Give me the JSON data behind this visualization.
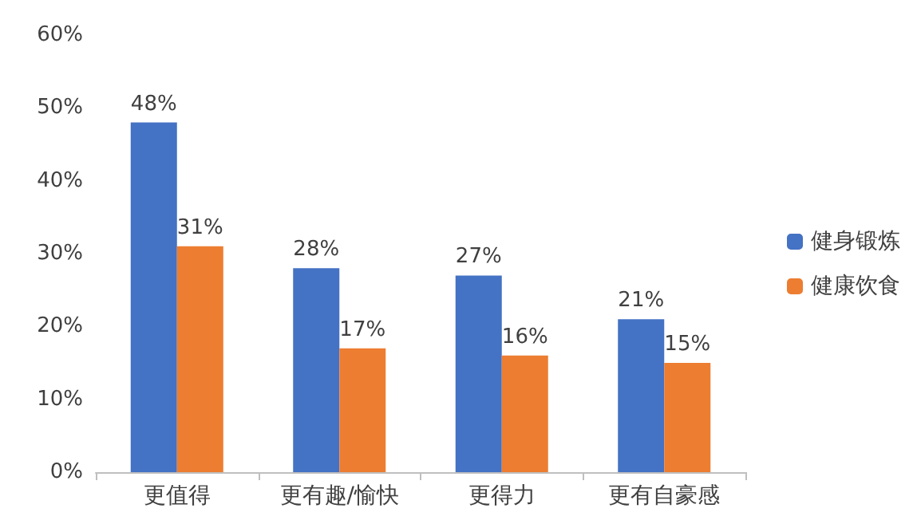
{
  "chart_data": {
    "type": "bar",
    "categories": [
      "更值得",
      "更有趣/愉快",
      "更得力",
      "更有自豪感"
    ],
    "series": [
      {
        "name": "健身锻炼",
        "color": "#4472c4",
        "values": [
          48,
          28,
          27,
          21
        ],
        "value_labels": [
          "48%",
          "28%",
          "27%",
          "21%"
        ]
      },
      {
        "name": "健康饮食",
        "color": "#ed7d31",
        "values": [
          31,
          17,
          16,
          15
        ],
        "value_labels": [
          "31%",
          "17%",
          "16%",
          "15%"
        ]
      }
    ],
    "ylim": [
      0,
      60
    ],
    "yticks": [
      {
        "value": 0,
        "label": "0%"
      },
      {
        "value": 10,
        "label": "10%"
      },
      {
        "value": 20,
        "label": "20%"
      },
      {
        "value": 30,
        "label": "30%"
      },
      {
        "value": 40,
        "label": "40%"
      },
      {
        "value": 50,
        "label": "50%"
      },
      {
        "value": 60,
        "label": "60%"
      }
    ],
    "grid": false,
    "legend": "right"
  }
}
